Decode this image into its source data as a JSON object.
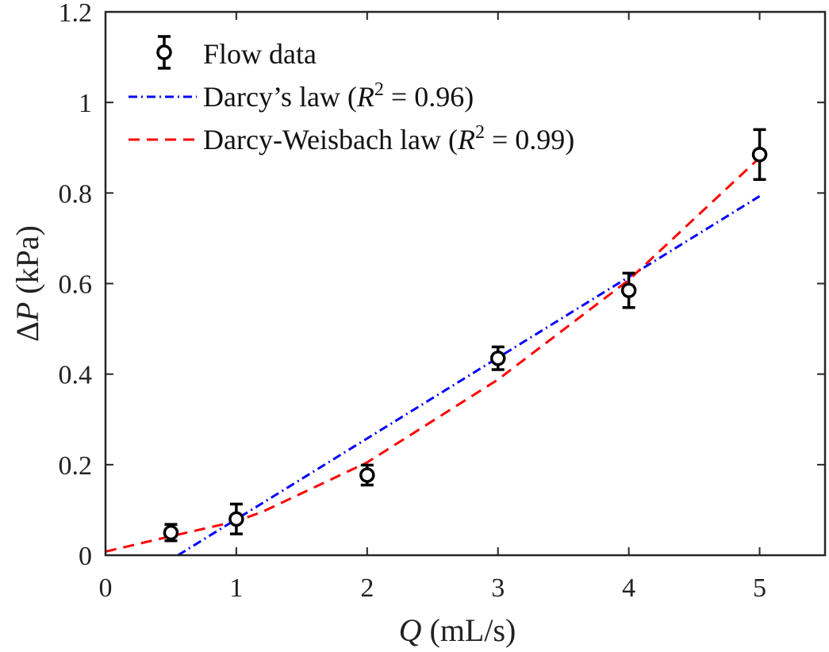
{
  "chart_data": {
    "type": "line",
    "xlabel": {
      "var": "Q",
      "unit": "(mL/s)"
    },
    "ylabel": {
      "var": "ΔP",
      "unit": "(kPa)"
    },
    "xlim": [
      0,
      5.5
    ],
    "ylim": [
      0,
      1.2
    ],
    "xticks": [
      "0",
      "1",
      "2",
      "3",
      "4",
      "5"
    ],
    "yticks": [
      "0",
      "0.2",
      "0.4",
      "0.6",
      "0.8",
      "1",
      "1.2"
    ],
    "grid": false,
    "legend_position": "top-left",
    "series": [
      {
        "name": "Flow data",
        "kind": "errorbar",
        "color": "#000000",
        "x": [
          0.5,
          1,
          2,
          3,
          4,
          5
        ],
        "y": [
          0.05,
          0.08,
          0.177,
          0.435,
          0.585,
          0.885
        ],
        "err": [
          0.018,
          0.033,
          0.022,
          0.025,
          0.038,
          0.055
        ]
      },
      {
        "name": "Darcy's law (R² = 0.96)",
        "legend_parts": {
          "prefix": "Darcy’s law (",
          "var": "R",
          "sup": "2",
          "suffix": " = 0.96)"
        },
        "kind": "line",
        "style": "dashdot",
        "color": "#0000ff",
        "x": [
          0.554,
          5
        ],
        "y": [
          0,
          0.793
        ]
      },
      {
        "name": "Darcy-Weisbach law (R² = 0.99)",
        "legend_parts": {
          "prefix": "Darcy-Weisbach law (",
          "var": "R",
          "sup": "2",
          "suffix": " = 0.99)"
        },
        "kind": "line",
        "style": "dashed",
        "color": "#ff0000",
        "x": [
          0,
          0.5,
          1,
          1.2,
          2,
          3,
          4,
          5
        ],
        "y": [
          0.008,
          0.042,
          0.075,
          0.096,
          0.205,
          0.388,
          0.608,
          0.878
        ]
      }
    ]
  }
}
